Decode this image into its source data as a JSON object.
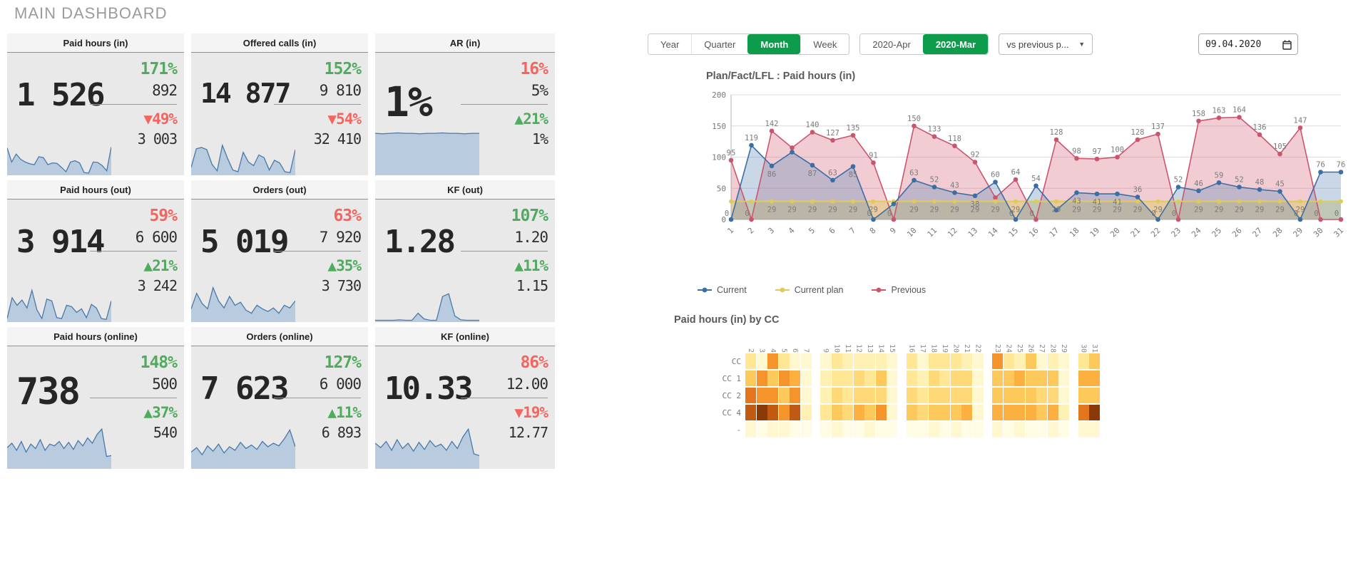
{
  "title": "MAIN DASHBOARD",
  "colors": {
    "green": "#50ab5e",
    "red": "#f4655f",
    "active_green": "#0d9b4c",
    "spark_line": "#4a78a8",
    "spark_fill": "#b9cbdf",
    "series_blue": "#3a6ea5",
    "series_yellow": "#e0ca5c",
    "series_red": "#c9566e"
  },
  "kpis": [
    {
      "title": "Paid hours (in)",
      "value": "1 526",
      "pct1": "171%",
      "pct1_color": "green",
      "val1": "892",
      "pct2": "▼49%",
      "pct2_color": "red",
      "val2": "3 003",
      "sparkline": [
        62,
        30,
        48,
        36,
        30,
        26,
        24,
        42,
        40,
        24,
        28,
        27,
        18,
        8,
        30,
        33,
        28,
        6,
        5,
        30,
        29,
        22,
        10,
        64
      ]
    },
    {
      "title": "Offered calls (in)",
      "value": "14 877",
      "pct1": "152%",
      "pct1_color": "green",
      "val1": "9 810",
      "pct2": "▼54%",
      "pct2_color": "red",
      "val2": "32 410",
      "sparkline": [
        18,
        60,
        63,
        58,
        25,
        10,
        68,
        38,
        12,
        8,
        52,
        30,
        22,
        46,
        40,
        12,
        34,
        28,
        8,
        6,
        58
      ]
    },
    {
      "title": "AR (in)",
      "value": "1%",
      "pct1": "16%",
      "pct1_color": "red",
      "val1": "5%",
      "pct2": "▲21%",
      "pct2_color": "green",
      "val2": "1%",
      "sparkline": [
        95,
        94,
        95,
        96,
        95,
        95,
        94,
        95,
        95,
        96,
        95,
        95,
        94,
        95,
        95
      ]
    },
    {
      "title": "Paid hours (out)",
      "value": "3 914",
      "pct1": "59%",
      "pct1_color": "red",
      "val1": "6 600",
      "pct2": "▲21%",
      "pct2_color": "green",
      "val2": "3 242",
      "sparkline": [
        8,
        55,
        38,
        50,
        32,
        72,
        28,
        8,
        52,
        48,
        10,
        8,
        38,
        35,
        22,
        30,
        10,
        40,
        32,
        8,
        6,
        48
      ]
    },
    {
      "title": "Orders (out)",
      "value": "5 019",
      "pct1": "63%",
      "pct1_color": "red",
      "val1": "7 920",
      "pct2": "▲35%",
      "pct2_color": "green",
      "val2": "3 730",
      "sparkline": [
        30,
        65,
        42,
        30,
        78,
        48,
        32,
        58,
        38,
        45,
        27,
        20,
        38,
        30,
        24,
        32,
        20,
        38,
        32,
        48
      ]
    },
    {
      "title": "KF (out)",
      "value": "1.28",
      "pct1": "107%",
      "pct1_color": "green",
      "val1": "1.20",
      "pct2": "▲11%",
      "pct2_color": "green",
      "val2": "1.15",
      "sparkline": [
        4,
        4,
        4,
        4,
        5,
        4,
        4,
        20,
        7,
        4,
        4,
        58,
        64,
        14,
        5,
        4,
        4,
        4
      ]
    },
    {
      "title": "Paid hours (online)",
      "value": "738",
      "pct1": "148%",
      "pct1_color": "green",
      "val1": "500",
      "pct2": "▲37%",
      "pct2_color": "green",
      "val2": "540",
      "sparkline": [
        48,
        58,
        42,
        62,
        38,
        56,
        46,
        66,
        42,
        56,
        52,
        62,
        46,
        60,
        44,
        64,
        52,
        70,
        58,
        78,
        90,
        28,
        30
      ]
    },
    {
      "title": "Orders (online)",
      "value": "7 623",
      "pct1": "127%",
      "pct1_color": "green",
      "val1": "6 000",
      "pct2": "▲11%",
      "pct2_color": "green",
      "val2": "6 893",
      "sparkline": [
        38,
        48,
        32,
        52,
        40,
        56,
        36,
        50,
        42,
        60,
        46,
        54,
        44,
        62,
        50,
        58,
        52,
        68,
        88,
        50
      ]
    },
    {
      "title": "KF (online)",
      "value": "10.33",
      "pct1": "86%",
      "pct1_color": "red",
      "val1": "12.00",
      "pct2": "▼19%",
      "pct2_color": "red",
      "val2": "12.77",
      "sparkline": [
        58,
        48,
        62,
        42,
        66,
        46,
        58,
        40,
        60,
        44,
        64,
        50,
        56,
        42,
        62,
        46,
        72,
        90,
        34,
        30
      ]
    }
  ],
  "toolbar": {
    "period_buttons": [
      {
        "label": "Year",
        "active": false
      },
      {
        "label": "Quarter",
        "active": false
      },
      {
        "label": "Month",
        "active": true
      },
      {
        "label": "Week",
        "active": false
      }
    ],
    "month_buttons": [
      {
        "label": "2020-Apr",
        "active": false
      },
      {
        "label": "2020-Mar",
        "active": true
      }
    ],
    "compare_dropdown": "vs previous p...",
    "date_value": "09.04.2020"
  },
  "chart_data": [
    {
      "type": "line",
      "title": "Plan/Fact/LFL : Paid hours (in)",
      "x": [
        1,
        2,
        3,
        4,
        5,
        6,
        7,
        8,
        9,
        10,
        11,
        12,
        13,
        14,
        15,
        16,
        17,
        18,
        19,
        20,
        21,
        22,
        23,
        24,
        25,
        26,
        27,
        28,
        29,
        30,
        31
      ],
      "ylim": [
        0,
        200
      ],
      "yticks": [
        0,
        50,
        100,
        150,
        200
      ],
      "grid": true,
      "legend_position": "bottom",
      "series": [
        {
          "name": "Current",
          "color": "#3a6ea5",
          "values": [
            0,
            119,
            86,
            108,
            87,
            63,
            85,
            0,
            25,
            63,
            52,
            43,
            38,
            60,
            0,
            54,
            15,
            43,
            41,
            41,
            36,
            0,
            52,
            46,
            59,
            52,
            48,
            45,
            0,
            76,
            76
          ],
          "hide_value_labels": [
            3,
            8,
            16
          ]
        },
        {
          "name": "Current plan",
          "color": "#e0ca5c",
          "values": [
            29,
            29,
            29,
            29,
            29,
            29,
            29,
            29,
            29,
            29,
            29,
            29,
            29,
            29,
            29,
            29,
            29,
            29,
            29,
            29,
            29,
            29,
            29,
            29,
            29,
            29,
            29,
            29,
            29,
            29,
            29
          ],
          "label_days": [
            3,
            4,
            5,
            6,
            7,
            8,
            10,
            11,
            12,
            13,
            14,
            15,
            17,
            18,
            19,
            20,
            21,
            22,
            24,
            25,
            26,
            27,
            28,
            29
          ]
        },
        {
          "name": "Previous",
          "color": "#c9566e",
          "values": [
            95,
            0,
            142,
            115,
            140,
            127,
            135,
            91,
            0,
            150,
            133,
            118,
            92,
            35,
            64,
            0,
            128,
            98,
            97,
            100,
            128,
            137,
            0,
            158,
            163,
            164,
            136,
            105,
            147,
            0,
            0
          ],
          "hide_value_labels": [
            3,
            13
          ]
        }
      ]
    },
    {
      "type": "heatmap",
      "title": "Paid hours (in) by CC",
      "rows": [
        "CC",
        "CC 1",
        "CC 2",
        "CC 4",
        "-"
      ],
      "columns": [
        2,
        3,
        4,
        5,
        6,
        7,
        9,
        10,
        11,
        12,
        13,
        14,
        15,
        16,
        17,
        18,
        19,
        20,
        21,
        22,
        23,
        24,
        25,
        26,
        27,
        28,
        29,
        30,
        31
      ],
      "column_group_breaks_after": [
        7,
        15,
        22,
        29
      ],
      "values": [
        [
          3,
          1,
          7,
          3,
          1,
          1,
          1,
          3,
          2,
          2,
          2,
          2,
          1,
          3,
          1,
          3,
          3,
          3,
          2,
          1,
          7,
          3,
          2,
          5,
          1,
          2,
          1,
          3,
          5
        ],
        [
          5,
          7,
          5,
          7,
          6,
          1,
          2,
          3,
          3,
          4,
          3,
          5,
          1,
          3,
          2,
          4,
          3,
          4,
          4,
          1,
          5,
          5,
          6,
          5,
          5,
          5,
          1,
          6,
          6
        ],
        [
          8,
          7,
          7,
          5,
          7,
          1,
          2,
          4,
          3,
          4,
          4,
          4,
          1,
          4,
          3,
          4,
          4,
          4,
          4,
          1,
          5,
          5,
          5,
          5,
          4,
          4,
          1,
          5,
          5
        ],
        [
          9,
          10,
          9,
          7,
          9,
          2,
          3,
          5,
          4,
          6,
          5,
          7,
          1,
          5,
          4,
          5,
          5,
          5,
          6,
          1,
          6,
          6,
          6,
          6,
          5,
          6,
          2,
          8,
          10
        ],
        [
          1,
          0,
          1,
          1,
          0,
          0,
          0,
          1,
          0,
          0,
          1,
          0,
          0,
          0,
          0,
          1,
          0,
          1,
          0,
          0,
          1,
          0,
          1,
          0,
          0,
          1,
          0,
          1,
          1
        ]
      ],
      "palette": [
        "#fffce5",
        "#fff7cf",
        "#fff1b3",
        "#ffe795",
        "#ffd978",
        "#fec95b",
        "#fbb03f",
        "#f5942b",
        "#e2761c",
        "#c05a10",
        "#8a3a06"
      ]
    }
  ]
}
